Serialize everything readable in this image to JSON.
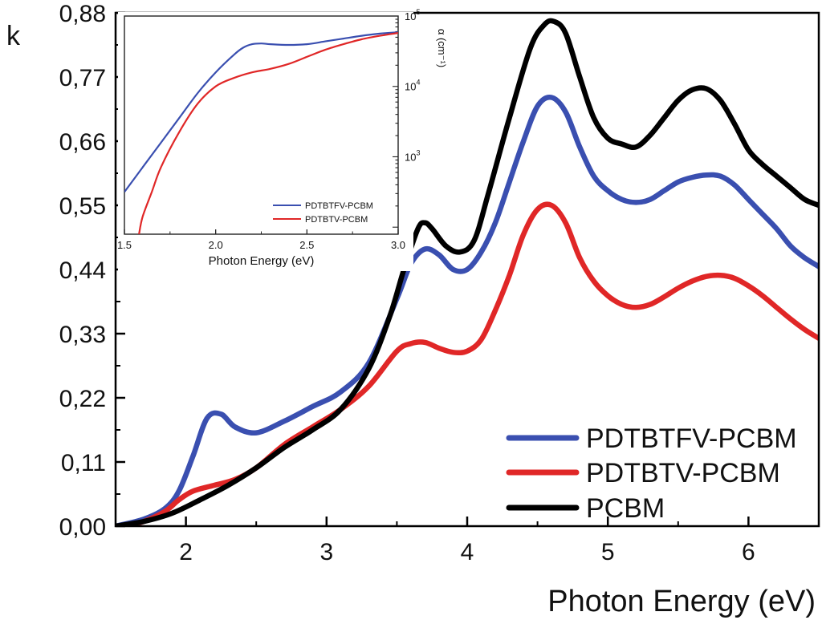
{
  "chart_data": [
    {
      "type": "line",
      "id": "main",
      "title": "",
      "xlabel": "Photon Energy (eV)",
      "ylabel": "k",
      "xlim": [
        1.5,
        6.5
      ],
      "ylim": [
        0,
        0.88
      ],
      "xticks": [
        2,
        3,
        4,
        5,
        6
      ],
      "yticks": [
        "0,00",
        "0,11",
        "0,22",
        "0,33",
        "0,44",
        "0,55",
        "0,66",
        "0,77",
        "0,88"
      ],
      "legend_position": "bottom-right",
      "series": [
        {
          "name": "PDTBTFV-PCBM",
          "color": "#3a4fb0",
          "x": [
            1.5,
            1.7,
            1.85,
            1.95,
            2.05,
            2.15,
            2.25,
            2.35,
            2.5,
            2.7,
            2.9,
            3.1,
            3.3,
            3.5,
            3.6,
            3.7,
            3.8,
            3.9,
            4.0,
            4.1,
            4.2,
            4.3,
            4.4,
            4.5,
            4.6,
            4.7,
            4.8,
            4.9,
            5.0,
            5.1,
            5.2,
            5.3,
            5.4,
            5.5,
            5.6,
            5.7,
            5.8,
            5.9,
            6.0,
            6.1,
            6.2,
            6.3,
            6.4,
            6.5
          ],
          "y": [
            0.0,
            0.012,
            0.03,
            0.06,
            0.12,
            0.185,
            0.192,
            0.17,
            0.16,
            0.18,
            0.205,
            0.23,
            0.28,
            0.39,
            0.45,
            0.475,
            0.465,
            0.44,
            0.44,
            0.47,
            0.52,
            0.59,
            0.66,
            0.72,
            0.735,
            0.71,
            0.65,
            0.6,
            0.575,
            0.56,
            0.555,
            0.56,
            0.575,
            0.59,
            0.598,
            0.602,
            0.6,
            0.585,
            0.56,
            0.535,
            0.51,
            0.48,
            0.46,
            0.445
          ]
        },
        {
          "name": "PDTBTV-PCBM",
          "color": "#e02727",
          "x": [
            1.5,
            1.7,
            1.85,
            1.95,
            2.05,
            2.2,
            2.35,
            2.5,
            2.7,
            2.9,
            3.1,
            3.3,
            3.5,
            3.6,
            3.7,
            3.8,
            3.9,
            4.0,
            4.1,
            4.2,
            4.3,
            4.4,
            4.5,
            4.6,
            4.7,
            4.8,
            4.9,
            5.0,
            5.1,
            5.2,
            5.3,
            5.4,
            5.5,
            5.6,
            5.7,
            5.8,
            5.9,
            6.0,
            6.1,
            6.2,
            6.3,
            6.4,
            6.5
          ],
          "y": [
            -0.005,
            0.008,
            0.025,
            0.045,
            0.06,
            0.07,
            0.08,
            0.1,
            0.14,
            0.17,
            0.2,
            0.24,
            0.3,
            0.313,
            0.315,
            0.305,
            0.298,
            0.3,
            0.32,
            0.37,
            0.43,
            0.5,
            0.543,
            0.55,
            0.52,
            0.46,
            0.42,
            0.395,
            0.38,
            0.375,
            0.38,
            0.393,
            0.408,
            0.42,
            0.428,
            0.43,
            0.425,
            0.412,
            0.395,
            0.375,
            0.355,
            0.337,
            0.322
          ]
        },
        {
          "name": "PCBM",
          "color": "#000000",
          "x": [
            1.5,
            1.7,
            1.9,
            2.1,
            2.3,
            2.5,
            2.7,
            2.9,
            3.1,
            3.3,
            3.45,
            3.55,
            3.65,
            3.7,
            3.75,
            3.85,
            3.95,
            4.05,
            4.15,
            4.3,
            4.45,
            4.55,
            4.62,
            4.7,
            4.8,
            4.9,
            5.0,
            5.1,
            5.2,
            5.3,
            5.4,
            5.5,
            5.6,
            5.7,
            5.8,
            5.9,
            6.0,
            6.1,
            6.2,
            6.3,
            6.4,
            6.5
          ],
          "y": [
            0.0,
            0.008,
            0.022,
            0.045,
            0.07,
            0.1,
            0.135,
            0.165,
            0.2,
            0.27,
            0.36,
            0.44,
            0.51,
            0.52,
            0.51,
            0.48,
            0.47,
            0.49,
            0.57,
            0.7,
            0.82,
            0.86,
            0.865,
            0.845,
            0.77,
            0.7,
            0.665,
            0.655,
            0.65,
            0.67,
            0.7,
            0.73,
            0.748,
            0.75,
            0.73,
            0.69,
            0.645,
            0.62,
            0.6,
            0.58,
            0.56,
            0.55
          ]
        }
      ]
    },
    {
      "type": "line",
      "id": "inset",
      "title": "",
      "xlabel": "Photon Energy (eV)",
      "ylabel": "α (cm⁻¹)",
      "yscale": "log",
      "xlim": [
        1.5,
        3.0
      ],
      "ylim_log10": [
        1.9,
        5.0
      ],
      "xticks": [
        "1.5",
        "2.0",
        "2.5",
        "3.0"
      ],
      "ytick_labels": [
        {
          "base": "10",
          "exp": "3",
          "log": 3
        },
        {
          "base": "10",
          "exp": "4",
          "log": 4
        },
        {
          "base": "10",
          "exp": "5",
          "log": 5
        }
      ],
      "legend_position": "bottom-right",
      "series": [
        {
          "name": "PDTBTFV-PCBM",
          "color": "#3a4fb0",
          "x": [
            1.5,
            1.6,
            1.7,
            1.8,
            1.9,
            2.0,
            2.1,
            2.15,
            2.2,
            2.25,
            2.3,
            2.4,
            2.5,
            2.6,
            2.7,
            2.8,
            2.9,
            3.0
          ],
          "log10_y": [
            2.5,
            2.85,
            3.2,
            3.55,
            3.9,
            4.2,
            4.45,
            4.55,
            4.6,
            4.61,
            4.6,
            4.59,
            4.6,
            4.64,
            4.68,
            4.72,
            4.75,
            4.77
          ]
        },
        {
          "name": "PDTBTV-PCBM",
          "color": "#e02727",
          "x": [
            1.58,
            1.6,
            1.65,
            1.7,
            1.8,
            1.9,
            2.0,
            2.1,
            2.2,
            2.3,
            2.4,
            2.5,
            2.6,
            2.7,
            2.8,
            2.9,
            3.0
          ],
          "log10_y": [
            1.9,
            2.15,
            2.5,
            2.85,
            3.35,
            3.75,
            4.0,
            4.12,
            4.2,
            4.25,
            4.32,
            4.42,
            4.52,
            4.6,
            4.67,
            4.72,
            4.76
          ]
        }
      ]
    }
  ]
}
